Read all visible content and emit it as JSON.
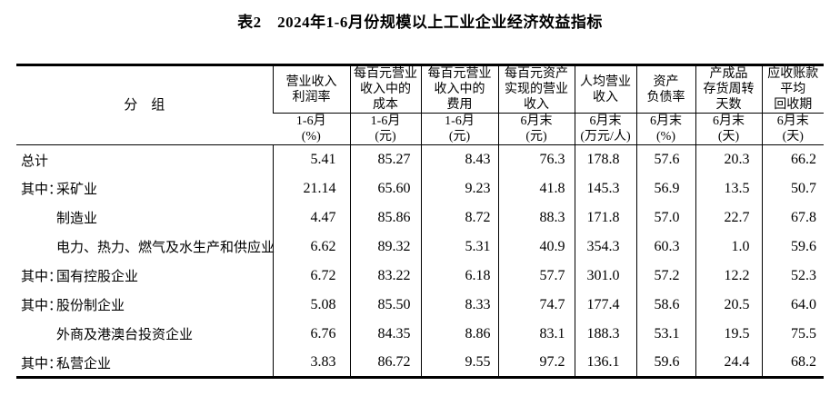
{
  "title": "表2　2024年1-6月份规模以上工业企业经济效益指标",
  "table": {
    "group_header": "分　组",
    "columns": [
      {
        "name": "营业收入\n利润率",
        "period": "1-6月\n(%)"
      },
      {
        "name": "每百元营业\n收入中的\n成本",
        "period": "1-6月\n(元)"
      },
      {
        "name": "每百元营业\n收入中的\n费用",
        "period": "1-6月\n(元)"
      },
      {
        "name": "每百元资产\n实现的营业\n收入",
        "period": "6月末\n(元)"
      },
      {
        "name": "人均营业\n收入",
        "period": "6月末\n(万元/人)"
      },
      {
        "name": "资产\n负债率",
        "period": "6月末\n(%)"
      },
      {
        "name": "产成品\n存货周转\n天数",
        "period": "6月末\n(天)"
      },
      {
        "name": "应收账款\n平均\n回收期",
        "period": "6月末\n(天)"
      }
    ],
    "rows": [
      {
        "prefix": "",
        "indent": false,
        "label": "总计",
        "values": [
          "5.41",
          "85.27",
          "8.43",
          "76.3",
          "178.8",
          "57.6",
          "20.3",
          "66.2"
        ]
      },
      {
        "prefix": "其中：",
        "indent": true,
        "label": "采矿业",
        "values": [
          "21.14",
          "65.60",
          "9.23",
          "41.8",
          "145.3",
          "56.9",
          "13.5",
          "50.7"
        ]
      },
      {
        "prefix": "",
        "indent": true,
        "label": "制造业",
        "values": [
          "4.47",
          "85.86",
          "8.72",
          "88.3",
          "171.8",
          "57.0",
          "22.7",
          "67.8"
        ]
      },
      {
        "prefix": "",
        "indent": true,
        "label": "电力、热力、燃气及水生产和供应业",
        "values": [
          "6.62",
          "89.32",
          "5.31",
          "40.9",
          "354.3",
          "60.3",
          "1.0",
          "59.6"
        ]
      },
      {
        "prefix": "其中：",
        "indent": true,
        "label": "国有控股企业",
        "values": [
          "6.72",
          "83.22",
          "6.18",
          "57.7",
          "301.0",
          "57.2",
          "12.2",
          "52.3"
        ]
      },
      {
        "prefix": "其中：",
        "indent": true,
        "label": "股份制企业",
        "values": [
          "5.08",
          "85.50",
          "8.33",
          "74.7",
          "177.4",
          "58.6",
          "20.5",
          "64.0"
        ]
      },
      {
        "prefix": "",
        "indent": true,
        "label": "外商及港澳台投资企业",
        "values": [
          "6.76",
          "84.35",
          "8.86",
          "83.1",
          "188.3",
          "53.1",
          "19.5",
          "75.5"
        ]
      },
      {
        "prefix": "其中：",
        "indent": true,
        "label": "私营企业",
        "values": [
          "3.83",
          "86.72",
          "9.55",
          "97.2",
          "136.1",
          "59.6",
          "24.4",
          "68.2"
        ]
      }
    ]
  }
}
